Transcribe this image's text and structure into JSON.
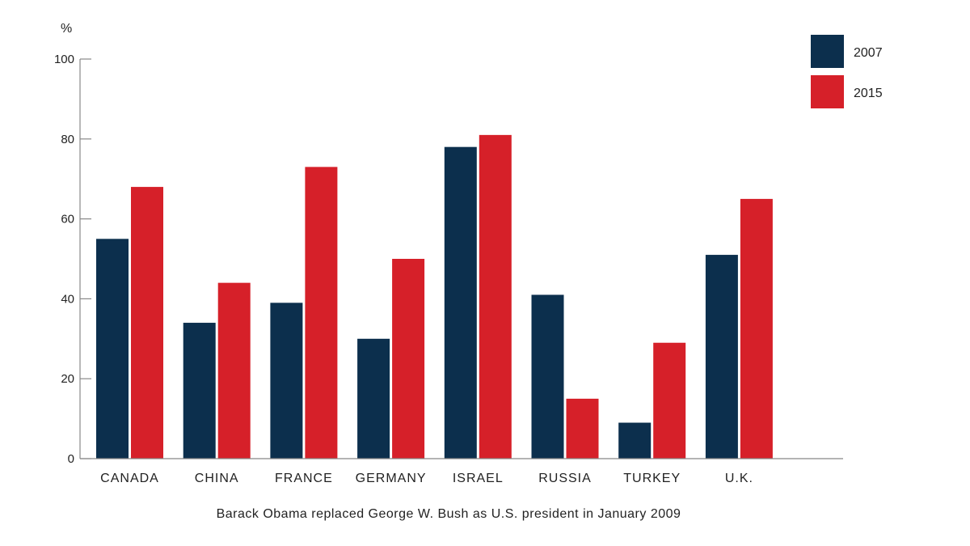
{
  "chart_data": {
    "type": "bar",
    "categories": [
      "CANADA",
      "CHINA",
      "FRANCE",
      "GERMANY",
      "ISRAEL",
      "RUSSIA",
      "TURKEY",
      "U.K."
    ],
    "series": [
      {
        "name": "2007",
        "values": [
          55,
          34,
          39,
          30,
          78,
          41,
          9,
          51
        ],
        "color": "#0c2f4d"
      },
      {
        "name": "2015",
        "values": [
          68,
          44,
          73,
          50,
          81,
          15,
          29,
          65
        ],
        "color": "#d62029"
      }
    ],
    "ylabel": "%",
    "ylim": [
      0,
      100
    ],
    "yticks": [
      0,
      20,
      40,
      60,
      80,
      100
    ],
    "legend": "top-right",
    "grid": false
  },
  "note": "Barack Obama replaced George W. Bush as U.S. president in January 2009"
}
